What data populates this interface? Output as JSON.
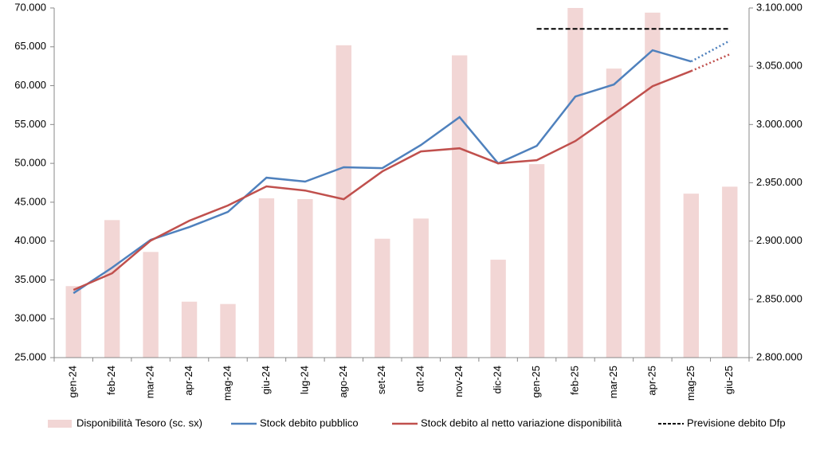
{
  "chart_data": {
    "type": "combo",
    "categories": [
      "gen-24",
      "feb-24",
      "mar-24",
      "apr-24",
      "mag-24",
      "giu-24",
      "lug-24",
      "ago-24",
      "set-24",
      "ott-24",
      "nov-24",
      "dic-24",
      "gen-25",
      "feb-25",
      "mar-25",
      "apr-25",
      "mag-25",
      "giu-25"
    ],
    "series": [
      {
        "name": "Disponibilità Tesoro (sc. sx)",
        "type": "bar",
        "axis": "y",
        "color": "#f2d6d5",
        "values": [
          34200,
          42700,
          38600,
          32200,
          31900,
          45500,
          45400,
          65200,
          40300,
          42900,
          63900,
          37600,
          49900,
          70000,
          62200,
          69400,
          46100,
          47000
        ]
      },
      {
        "name": "Stock debito pubblico",
        "type": "line",
        "axis": "y2",
        "color": "#4f81bd",
        "dotted_from": 16,
        "values": [
          2855300,
          2877200,
          2901100,
          2912000,
          2925000,
          2954400,
          2951000,
          2963300,
          2962600,
          2982400,
          3006300,
          2966700,
          2981700,
          3024000,
          3034300,
          3063700,
          3054100,
          3071900
        ]
      },
      {
        "name": "Stock debito al netto variazione disponibilità",
        "type": "line",
        "axis": "y2",
        "color": "#c0504d",
        "dotted_from": 16,
        "values": [
          2858100,
          2872400,
          2900400,
          2917500,
          2930500,
          2946900,
          2943400,
          2935900,
          2959800,
          2976900,
          2979600,
          2966700,
          2969400,
          2985800,
          3009000,
          3032900,
          3045900,
          3060200
        ]
      },
      {
        "name": "Previsione debito Dfp",
        "type": "line",
        "axis": "y2",
        "color": "#000000",
        "dashed": true,
        "values": [
          null,
          null,
          null,
          null,
          null,
          null,
          null,
          null,
          null,
          null,
          null,
          null,
          3082100,
          3082100,
          3082100,
          3082100,
          3082100,
          3082100
        ]
      }
    ],
    "ylim": [
      25000,
      70000
    ],
    "yticks": [
      {
        "value": 25000,
        "label": "25.000"
      },
      {
        "value": 30000,
        "label": "30.000"
      },
      {
        "value": 35000,
        "label": "35.000"
      },
      {
        "value": 40000,
        "label": "40.000"
      },
      {
        "value": 45000,
        "label": "45.000"
      },
      {
        "value": 50000,
        "label": "50.000"
      },
      {
        "value": 55000,
        "label": "55.000"
      },
      {
        "value": 60000,
        "label": "60.000"
      },
      {
        "value": 65000,
        "label": "65.000"
      },
      {
        "value": 70000,
        "label": "70.000"
      }
    ],
    "y2lim": [
      2800000,
      3100000
    ],
    "y2ticks": [
      {
        "value": 2800000,
        "label": "2.800.000"
      },
      {
        "value": 2850000,
        "label": "2.850.000"
      },
      {
        "value": 2900000,
        "label": "2.900.000"
      },
      {
        "value": 2950000,
        "label": "2.950.000"
      },
      {
        "value": 3000000,
        "label": "3.000.000"
      },
      {
        "value": 3050000,
        "label": "3.050.000"
      },
      {
        "value": 3100000,
        "label": "3.100.000"
      }
    ],
    "legend": "bottom"
  }
}
